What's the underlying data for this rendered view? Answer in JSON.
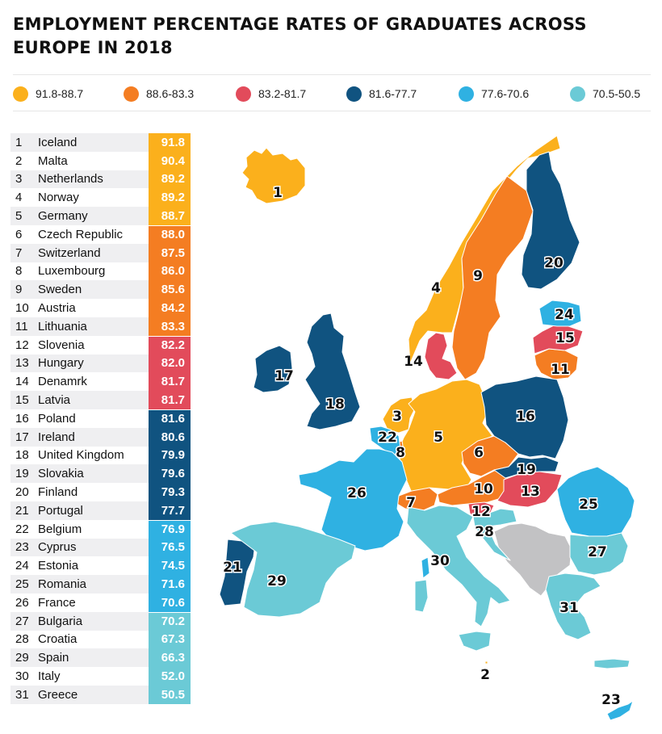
{
  "title": "EMPLOYMENT PERCENTAGE RATES OF GRADUATES ACROSS EUROPE IN 2018",
  "colors": {
    "band1": "#fbb01c",
    "band2": "#f47d22",
    "band3": "#e24b5b",
    "band4": "#105380",
    "band5": "#2fb1e2",
    "band6": "#6bcad6",
    "no_data": "#c2c2c4"
  },
  "legend": [
    {
      "label": "91.8-88.7",
      "color": "#fbb01c"
    },
    {
      "label": "88.6-83.3",
      "color": "#f47d22"
    },
    {
      "label": "83.2-81.7",
      "color": "#e24b5b"
    },
    {
      "label": "81.6-77.7",
      "color": "#105380"
    },
    {
      "label": "77.6-70.6",
      "color": "#2fb1e2"
    },
    {
      "label": "70.5-50.5",
      "color": "#6bcad6"
    }
  ],
  "countries": [
    {
      "rank": "1",
      "name": "Iceland",
      "value": "91.8",
      "band": 1
    },
    {
      "rank": "2",
      "name": "Malta",
      "value": "90.4",
      "band": 1
    },
    {
      "rank": "3",
      "name": "Netherlands",
      "value": "89.2",
      "band": 1
    },
    {
      "rank": "4",
      "name": "Norway",
      "value": "89.2",
      "band": 1
    },
    {
      "rank": "5",
      "name": "Germany",
      "value": "88.7",
      "band": 1
    },
    {
      "rank": "6",
      "name": "Czech Republic",
      "value": "88.0",
      "band": 2
    },
    {
      "rank": "7",
      "name": "Switzerland",
      "value": "87.5",
      "band": 2
    },
    {
      "rank": "8",
      "name": "Luxembourg",
      "value": "86.0",
      "band": 2
    },
    {
      "rank": "9",
      "name": "Sweden",
      "value": "85.6",
      "band": 2
    },
    {
      "rank": "10",
      "name": "Austria",
      "value": "84.2",
      "band": 2
    },
    {
      "rank": "11",
      "name": "Lithuania",
      "value": "83.3",
      "band": 2
    },
    {
      "rank": "12",
      "name": "Slovenia",
      "value": "82.2",
      "band": 3
    },
    {
      "rank": "13",
      "name": "Hungary",
      "value": "82.0",
      "band": 3
    },
    {
      "rank": "14",
      "name": "Denamrk",
      "value": "81.7",
      "band": 3
    },
    {
      "rank": "15",
      "name": "Latvia",
      "value": "81.7",
      "band": 3
    },
    {
      "rank": "16",
      "name": "Poland",
      "value": "81.6",
      "band": 4
    },
    {
      "rank": "17",
      "name": "Ireland",
      "value": "80.6",
      "band": 4
    },
    {
      "rank": "18",
      "name": "United Kingdom",
      "value": "79.9",
      "band": 4
    },
    {
      "rank": "19",
      "name": "Slovakia",
      "value": "79.6",
      "band": 4
    },
    {
      "rank": "20",
      "name": "Finland",
      "value": "79.3",
      "band": 4
    },
    {
      "rank": "21",
      "name": "Portugal",
      "value": "77.7",
      "band": 4
    },
    {
      "rank": "22",
      "name": "Belgium",
      "value": "76.9",
      "band": 5
    },
    {
      "rank": "23",
      "name": "Cyprus",
      "value": "76.5",
      "band": 5
    },
    {
      "rank": "24",
      "name": "Estonia",
      "value": "74.5",
      "band": 5
    },
    {
      "rank": "25",
      "name": "Romania",
      "value": "71.6",
      "band": 5
    },
    {
      "rank": "26",
      "name": "France",
      "value": "70.6",
      "band": 5
    },
    {
      "rank": "27",
      "name": "Bulgaria",
      "value": "70.2",
      "band": 6
    },
    {
      "rank": "28",
      "name": "Croatia",
      "value": "67.3",
      "band": 6
    },
    {
      "rank": "29",
      "name": "Spain",
      "value": "66.3",
      "band": 6
    },
    {
      "rank": "30",
      "name": "Italy",
      "value": "52.0",
      "band": 6
    },
    {
      "rank": "31",
      "name": "Greece",
      "value": "50.5",
      "band": 6
    }
  ],
  "map_labels": [
    "1",
    "2",
    "3",
    "4",
    "5",
    "6",
    "7",
    "8",
    "9",
    "10",
    "11",
    "12",
    "13",
    "14",
    "15",
    "16",
    "17",
    "18",
    "19",
    "20",
    "21",
    "22",
    "23",
    "24",
    "25",
    "26",
    "27",
    "28",
    "29",
    "30",
    "31"
  ]
}
